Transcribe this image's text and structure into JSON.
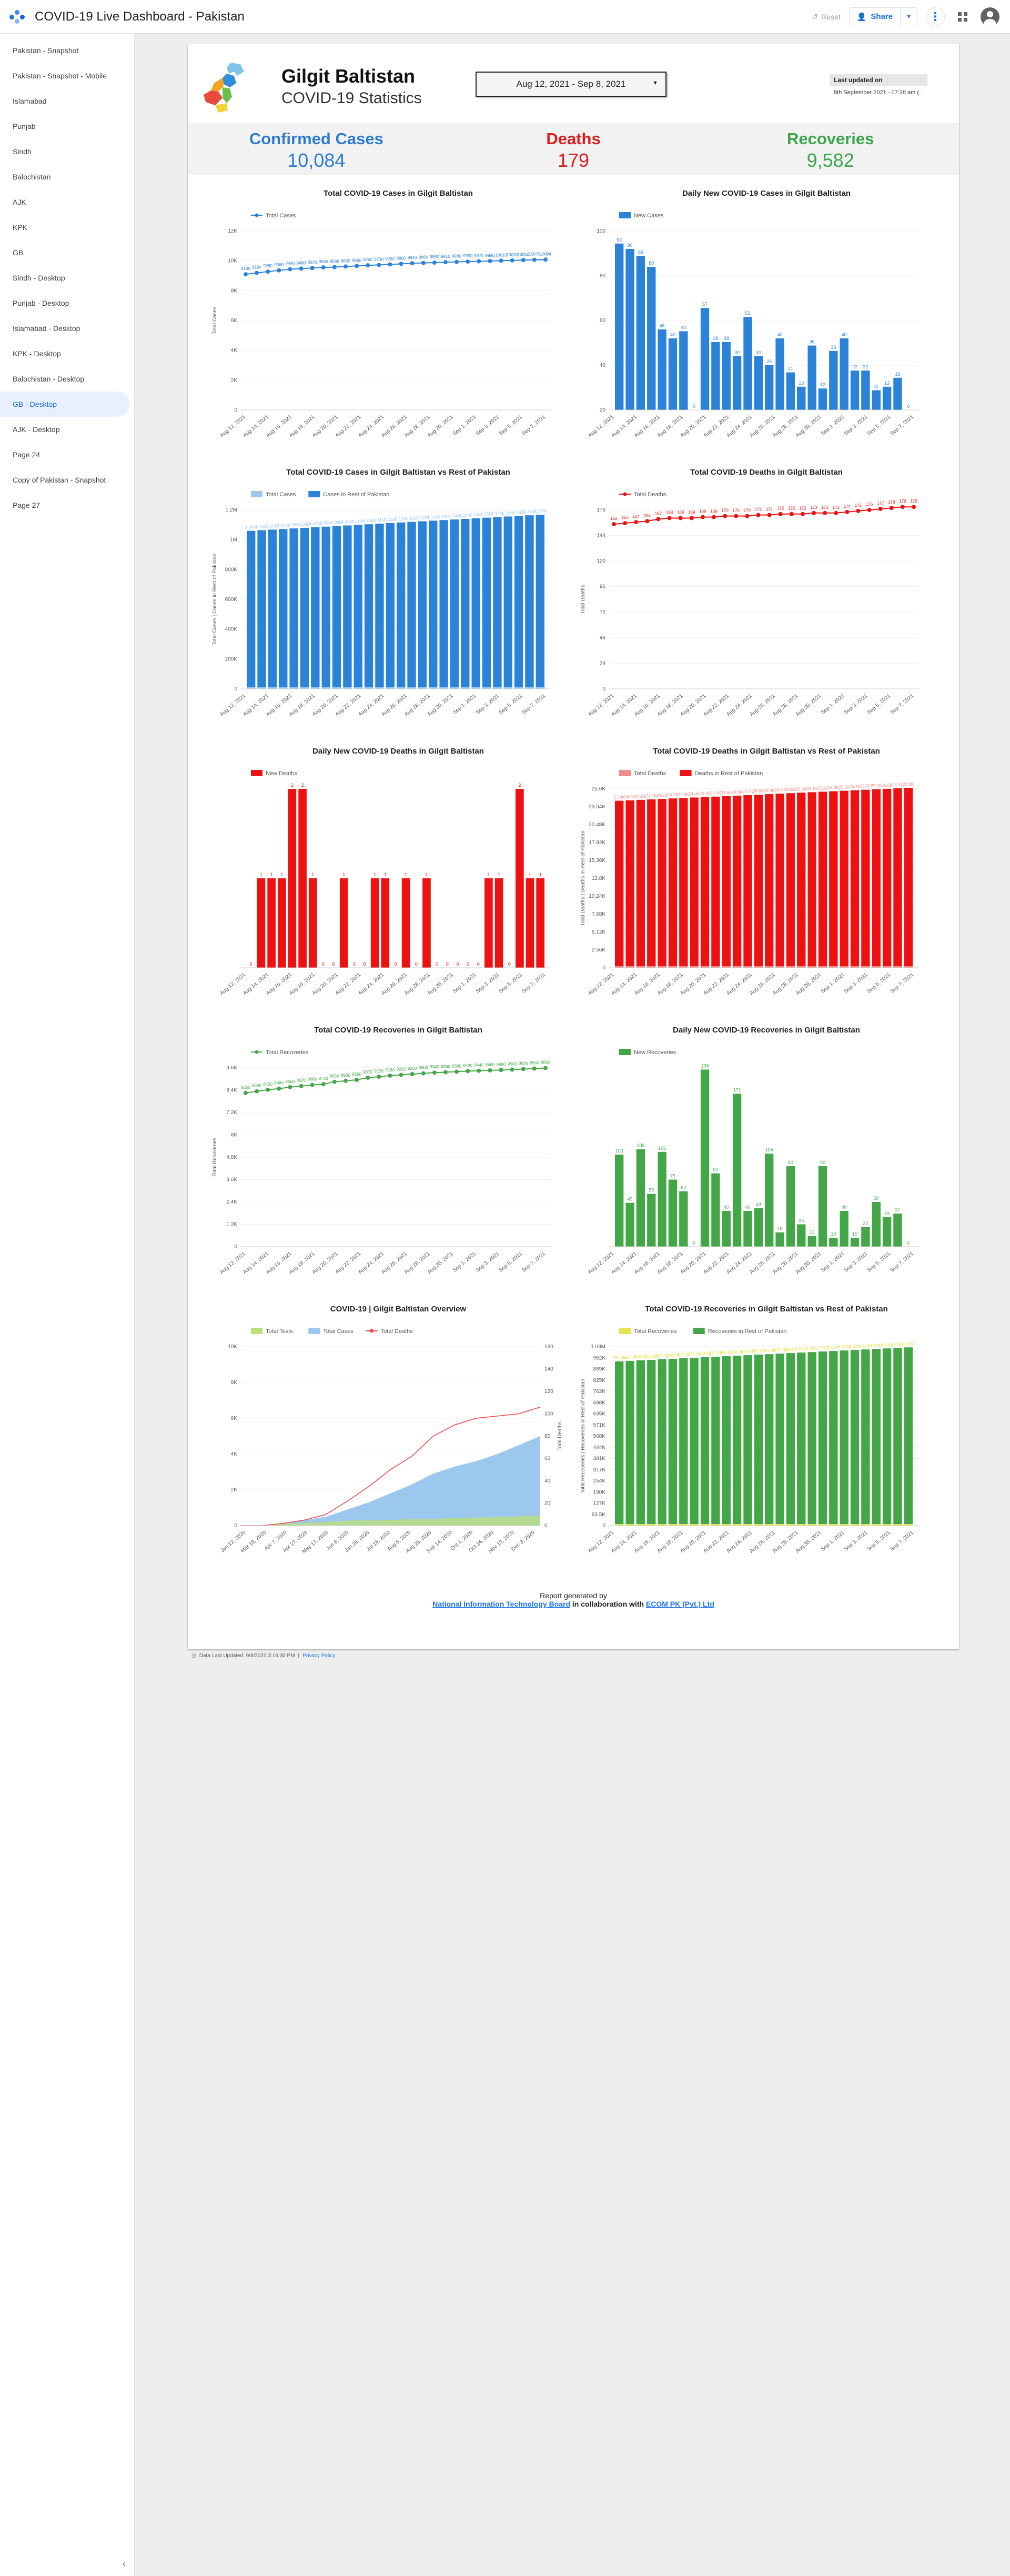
{
  "app": {
    "title": "COVID-19 Live Dashboard - Pakistan",
    "reset_label": "Reset",
    "share_label": "Share"
  },
  "sidebar": {
    "items": [
      {
        "label": "Pakistan - Snapshot"
      },
      {
        "label": "Pakistan - Snapshot - Mobile"
      },
      {
        "label": "Islamabad"
      },
      {
        "label": "Punjab"
      },
      {
        "label": "Sindh"
      },
      {
        "label": "Balochistan"
      },
      {
        "label": "AJK"
      },
      {
        "label": "KPK"
      },
      {
        "label": "GB"
      },
      {
        "label": "Sindh - Desktop"
      },
      {
        "label": "Punjab - Desktop"
      },
      {
        "label": "Islamabad - Desktop"
      },
      {
        "label": "KPK - Desktop"
      },
      {
        "label": "Balochistan - Desktop"
      },
      {
        "label": "GB - Desktop",
        "active": true
      },
      {
        "label": "AJK - Desktop"
      },
      {
        "label": "Page 24"
      },
      {
        "label": "Copy of Pakistan - Snapshot"
      },
      {
        "label": "Page 27"
      }
    ]
  },
  "report": {
    "region": "Gilgit Baltistan",
    "subtitle": "COVID-19 Statistics",
    "date_range": "Aug 12, 2021 - Sep 8, 2021",
    "updated_label": "Last updated on",
    "updated_value": "8th September 2021 - 07:28 am (...",
    "stats": [
      {
        "label": "Confirmed Cases",
        "value": "10,084",
        "color": "#2b7bd5"
      },
      {
        "label": "Deaths",
        "value": "179",
        "color": "#e01b1b"
      },
      {
        "label": "Recoveries",
        "value": "9,582",
        "color": "#3aa64a"
      }
    ],
    "footer": {
      "line1": "Report generated by",
      "org1": "National Information Technology Board",
      "mid": " in collaboration with ",
      "org2": "ECOM PK (Pvt.) Ltd"
    },
    "bottom_note": "Data Last Updated: 9/8/2021 3:16:30 PM",
    "privacy": "Privacy Policy"
  },
  "colors": {
    "blue": "#2b82d9",
    "light_blue": "#9cc8ef",
    "red": "#ee1111",
    "pink": "#f28b8b",
    "green": "#44a747",
    "light_green": "#b9e07b",
    "yellow": "#e5e552"
  },
  "chart_data": [
    {
      "id": "total-cases",
      "type": "line",
      "title": "Total COVID-19 Cases in Gilgit Baltistan",
      "legend": [
        "Total Cases"
      ],
      "ylabel": "Total Cases",
      "ylim": [
        0,
        12000
      ],
      "yticks": [
        "0",
        "2K",
        "4K",
        "6K",
        "8K",
        "10K",
        "12K"
      ],
      "xticks": [
        "Aug 12, 2021",
        "Aug 14, 2021",
        "Aug 16, 2021",
        "Aug 18, 2021",
        "Aug 20, 2021",
        "Aug 22, 2021",
        "Aug 24, 2021",
        "Aug 26, 2021",
        "Aug 28, 2021",
        "Aug 30, 2021",
        "Sep 1, 2021",
        "Sep 3, 2021",
        "Sep 5, 2021",
        "Sep 7, 2021"
      ],
      "values": [
        9100,
        9190,
        9280,
        9360,
        9440,
        9480,
        9520,
        9560,
        9580,
        9620,
        9660,
        9700,
        9730,
        9760,
        9800,
        9840,
        9860,
        9880,
        9910,
        9930,
        9950,
        9970,
        9990,
        10010,
        10030,
        10050,
        10070,
        10084
      ],
      "color": "#2b82d9"
    },
    {
      "id": "daily-cases",
      "type": "bar",
      "title": "Daily New COVID-19 Cases in Gilgit Baltistan",
      "legend": [
        "New Cases"
      ],
      "ylim": [
        0,
        100
      ],
      "yticks": [
        "20",
        "40",
        "60",
        "80",
        "100"
      ],
      "xticks": [
        "Aug 12, 2021",
        "Aug 14, 2021",
        "Aug 16, 2021",
        "Aug 18, 2021",
        "Aug 20, 2021",
        "Aug 22, 2021",
        "Aug 24, 2021",
        "Aug 26, 2021",
        "Aug 28, 2021",
        "Aug 30, 2021",
        "Sep 1, 2021",
        "Sep 3, 2021",
        "Sep 5, 2021",
        "Sep 7, 2021"
      ],
      "values": [
        93,
        90,
        86,
        80,
        45,
        40,
        44,
        0,
        57,
        38,
        38,
        30,
        52,
        30,
        25,
        40,
        21,
        13,
        36,
        12,
        33,
        40,
        22,
        22,
        11,
        13,
        18,
        0
      ],
      "color": "#2b82d9"
    },
    {
      "id": "cases-vs-rest",
      "type": "stacked-bar",
      "title": "Total COVID-19 Cases in Gilgit Baltistan vs Rest of Pakistan",
      "legend": [
        "Total Cases",
        "Cases in Rest of Pakistan"
      ],
      "ylabel": "Total Cases | Cases in Rest of Pakistan",
      "ylim": [
        0,
        1200000
      ],
      "yticks": [
        "0",
        "200K",
        "400K",
        "600K",
        "800K",
        "1M",
        "1.2M"
      ],
      "xticks": [
        "Aug 12, 2021",
        "Aug 14, 2021",
        "Aug 16, 2021",
        "Aug 18, 2021",
        "Aug 20, 2021",
        "Aug 22, 2021",
        "Aug 24, 2021",
        "Aug 26, 2021",
        "Aug 28, 2021",
        "Aug 30, 2021",
        "Sep 1, 2021",
        "Sep 3, 2021",
        "Sep 5, 2021",
        "Sep 7, 2021"
      ],
      "values": [
        1060000,
        1064000,
        1068000,
        1072000,
        1076000,
        1080000,
        1084000,
        1088000,
        1092000,
        1096000,
        1100000,
        1104000,
        1108000,
        1112000,
        1116000,
        1120000,
        1124000,
        1128000,
        1132000,
        1136000,
        1140000,
        1144000,
        1148000,
        1152000,
        1156000,
        1160000,
        1164000,
        1168000
      ],
      "colors": [
        "#9cc8ef",
        "#2b82d9"
      ]
    },
    {
      "id": "total-deaths",
      "type": "line",
      "title": "Total COVID-19 Deaths in Gilgit Baltistan",
      "legend": [
        "Total Deaths"
      ],
      "ylabel": "Total Deaths",
      "ylim": [
        0,
        176
      ],
      "yticks": [
        "0",
        "24",
        "48",
        "72",
        "96",
        "120",
        "144",
        "176"
      ],
      "xticks": [
        "Aug 12, 2021",
        "Aug 14, 2021",
        "Aug 16, 2021",
        "Aug 18, 2021",
        "Aug 20, 2021",
        "Aug 22, 2021",
        "Aug 24, 2021",
        "Aug 26, 2021",
        "Aug 28, 2021",
        "Aug 30, 2021",
        "Sep 1, 2021",
        "Sep 3, 2021",
        "Sep 5, 2021",
        "Sep 7, 2021"
      ],
      "values": [
        162,
        163,
        164,
        165,
        167,
        168,
        168,
        168,
        169,
        169,
        170,
        170,
        170,
        171,
        171,
        172,
        172,
        172,
        173,
        173,
        173,
        174,
        175,
        176,
        177,
        178,
        179,
        179
      ],
      "color": "#ee1111"
    },
    {
      "id": "daily-deaths",
      "type": "bar",
      "title": "Daily New COVID-19 Deaths in Gilgit Baltistan",
      "legend": [
        "New Deaths"
      ],
      "ylim": [
        0,
        2
      ],
      "yticks": [],
      "xticks": [
        "Aug 12, 2021",
        "Aug 14, 2021",
        "Aug 16, 2021",
        "Aug 18, 2021",
        "Aug 20, 2021",
        "Aug 22, 2021",
        "Aug 24, 2021",
        "Aug 26, 2021",
        "Aug 28, 2021",
        "Aug 30, 2021",
        "Sep 1, 2021",
        "Sep 3, 2021",
        "Sep 5, 2021",
        "Sep 7, 2021"
      ],
      "values": [
        0,
        1,
        1,
        1,
        2,
        2,
        1,
        0,
        0,
        1,
        0,
        0,
        1,
        1,
        0,
        1,
        0,
        1,
        0,
        0,
        0,
        0,
        0,
        1,
        1,
        0,
        2,
        1,
        1
      ],
      "color": "#ee1111"
    },
    {
      "id": "deaths-vs-rest",
      "type": "stacked-bar",
      "title": "Total COVID-19 Deaths in Gilgit Baltistan vs Rest of Pakistan",
      "legend": [
        "Total Deaths",
        "Deaths in Rest of Pakistan"
      ],
      "ylabel": "Total Deaths | Deaths in Rest of Pakistan",
      "ylim": [
        0,
        25600
      ],
      "yticks": [
        "0",
        "2.56K",
        "5.12K",
        "7.68K",
        "10.24K",
        "12.8K",
        "15.36K",
        "17.92K",
        "20.48K",
        "23.04K",
        "25.6K"
      ],
      "xticks": [
        "Aug 12, 2021",
        "Aug 14, 2021",
        "Aug 16, 2021",
        "Aug 18, 2021",
        "Aug 20, 2021",
        "Aug 22, 2021",
        "Aug 24, 2021",
        "Aug 26, 2021",
        "Aug 28, 2021",
        "Aug 30, 2021",
        "Sep 1, 2021",
        "Sep 3, 2021",
        "Sep 5, 2021",
        "Sep 7, 2021"
      ],
      "values": [
        23900,
        23960,
        24030,
        24090,
        24160,
        24230,
        24290,
        24360,
        24430,
        24490,
        24560,
        24630,
        24700,
        24770,
        24840,
        24910,
        24980,
        25050,
        25120,
        25190,
        25260,
        25330,
        25400,
        25470,
        25540,
        25610,
        25680,
        25750
      ],
      "colors": [
        "#f28b8b",
        "#ee1111"
      ]
    },
    {
      "id": "total-recoveries",
      "type": "line",
      "title": "Total COVID-19 Recoveries in Gilgit Baltistan",
      "legend": [
        "Total Recoveries"
      ],
      "ylabel": "Total Recoveries",
      "ylim": [
        0,
        9600
      ],
      "yticks": [
        "0",
        "1.2K",
        "2.4K",
        "3.6K",
        "4.8K",
        "6K",
        "7.2K",
        "8.4K",
        "9.6K"
      ],
      "xticks": [
        "Aug 12, 2021",
        "Aug 14, 2021",
        "Aug 16, 2021",
        "Aug 18, 2021",
        "Aug 20, 2021",
        "Aug 22, 2021",
        "Aug 24, 2021",
        "Aug 26, 2021",
        "Aug 28, 2021",
        "Aug 30, 2021",
        "Sep 1, 2021",
        "Sep 3, 2021",
        "Sep 5, 2021",
        "Sep 7, 2021"
      ],
      "values": [
        8250,
        8340,
        8420,
        8480,
        8560,
        8620,
        8680,
        8720,
        8850,
        8900,
        8950,
        9070,
        9120,
        9180,
        9220,
        9260,
        9300,
        9340,
        9360,
        9390,
        9420,
        9440,
        9460,
        9480,
        9500,
        9530,
        9560,
        9582
      ],
      "color": "#44a747"
    },
    {
      "id": "daily-recoveries",
      "type": "bar",
      "title": "Daily New COVID-19 Recoveries in Gilgit Baltistan",
      "legend": [
        "New Recoveries"
      ],
      "ylim": [
        0,
        200
      ],
      "yticks": [],
      "xticks": [
        "Aug 12, 2021",
        "Aug 14, 2021",
        "Aug 16, 2021",
        "Aug 18, 2021",
        "Aug 20, 2021",
        "Aug 22, 2021",
        "Aug 24, 2021",
        "Aug 26, 2021",
        "Aug 28, 2021",
        "Aug 30, 2021",
        "Sep 1, 2021",
        "Sep 3, 2021",
        "Sep 5, 2021",
        "Sep 7, 2021"
      ],
      "values": [
        103,
        49,
        109,
        59,
        106,
        75,
        62,
        0,
        198,
        82,
        40,
        171,
        40,
        43,
        104,
        16,
        90,
        25,
        12,
        90,
        10,
        40,
        10,
        22,
        50,
        33,
        37,
        0
      ],
      "color": "#44a747"
    },
    {
      "id": "overview",
      "type": "area",
      "title": "COVID-19   |   Gilgit Baltistan Overview",
      "legend": [
        "Total Tests",
        "Total Cases",
        "Total Deaths"
      ],
      "ylabel": "Total Deaths",
      "ylim": [
        0,
        10000
      ],
      "y2lim": [
        0,
        160
      ],
      "yticks": [
        "0",
        "2K",
        "4K",
        "6K",
        "8K",
        "10K"
      ],
      "y2ticks": [
        "0",
        "20",
        "40",
        "60",
        "80",
        "100",
        "120",
        "140",
        "160"
      ],
      "xticks": [
        "Jan 12, 2020",
        "Mar 18, 2020",
        "Apr 7, 2020",
        "Apr 27, 2020",
        "May 17, 2020",
        "Jun 6, 2020",
        "Jun 26, 2020",
        "Jul 16, 2020",
        "Aug 5, 2020",
        "Aug 25, 2020",
        "Sep 14, 2020",
        "Oct 4, 2020",
        "Oct 24, 2020",
        "Nov 13, 2020",
        "Dec 3, 2020"
      ],
      "series": [
        {
          "name": "Total Cases",
          "values": [
            0,
            0,
            100,
            300,
            500,
            900,
            1300,
            1800,
            2300,
            2900,
            3300,
            3600,
            4000,
            4500,
            5000
          ]
        },
        {
          "name": "Total Tests",
          "values": [
            0,
            0,
            100,
            150,
            200,
            280,
            300,
            320,
            360,
            380,
            420,
            450,
            480,
            520,
            560
          ]
        },
        {
          "name": "Total Deaths",
          "values": [
            0,
            0,
            2,
            5,
            10,
            22,
            35,
            50,
            62,
            80,
            90,
            96,
            98,
            100,
            106
          ]
        }
      ],
      "colors": [
        "#b9e07b",
        "#9cc8ef",
        "#ee4444"
      ]
    },
    {
      "id": "recoveries-vs-rest",
      "type": "stacked-bar",
      "title": "Total COVID-19 Recoveries in Gilgit Baltistan vs Rest of Pakistan",
      "legend": [
        "Total Recoveries",
        "Recoveries in Rest of Pakistan"
      ],
      "ylabel": "Total Recoveries | Recoveries in Rest of Pakistan",
      "ylim": [
        0,
        1035000
      ],
      "yticks": [
        "0",
        "63.5K",
        "127K",
        "190K",
        "254K",
        "317K",
        "381K",
        "444K",
        "508K",
        "571K",
        "635K",
        "698K",
        "762K",
        "825K",
        "889K",
        "952K",
        "1.03M"
      ],
      "xticks": [
        "Aug 12, 2021",
        "Aug 14, 2021",
        "Aug 16, 2021",
        "Aug 18, 2021",
        "Aug 20, 2021",
        "Aug 22, 2021",
        "Aug 24, 2021",
        "Aug 26, 2021",
        "Aug 28, 2021",
        "Aug 30, 2021",
        "Sep 1, 2021",
        "Sep 3, 2021",
        "Sep 5, 2021",
        "Sep 7, 2021"
      ],
      "values": [
        950000,
        953000,
        956000,
        959000,
        962000,
        965000,
        968000,
        971000,
        974000,
        977000,
        980000,
        983000,
        986000,
        989000,
        992000,
        995000,
        998000,
        1001000,
        1004000,
        1007000,
        1010000,
        1013000,
        1016000,
        1019000,
        1022000,
        1025000,
        1028000,
        1031000
      ],
      "colors": [
        "#e5e552",
        "#44a747"
      ]
    }
  ]
}
